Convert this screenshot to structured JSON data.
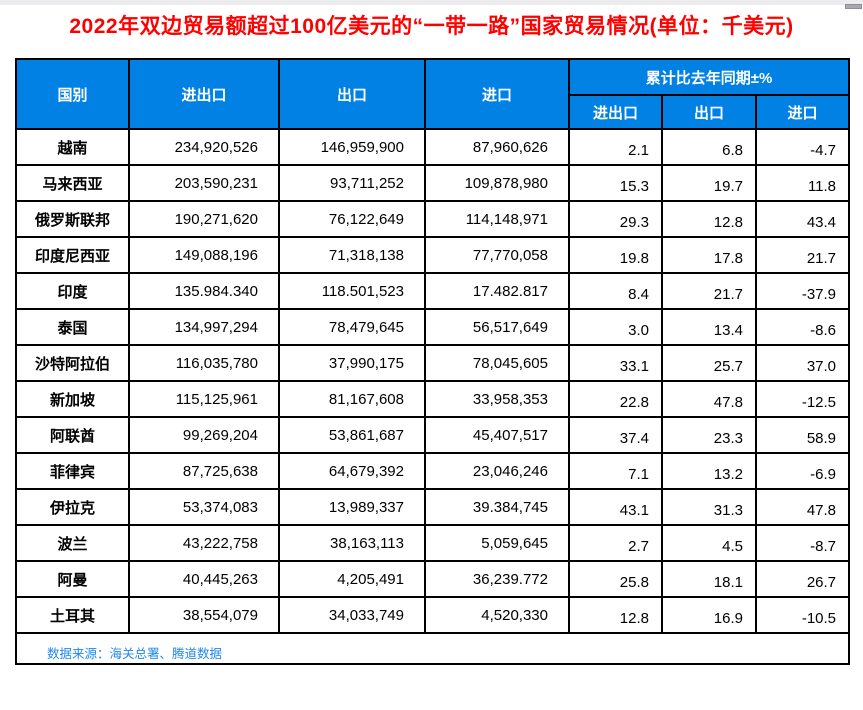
{
  "page": {
    "title": "2022年双边贸易额超过100亿美元的“一带一路”国家贸易情况(单位：千美元)",
    "source_note": "数据来源：海关总署、腾道数据"
  },
  "colors": {
    "title_red": "#FF0000",
    "header_bg": "#0081E3",
    "header_text": "#FFFFFF",
    "source_blue": "#1E87F0",
    "border": "#000000",
    "chrome_strip": "#ECECEE",
    "scrollbar": "#A9A9AF"
  },
  "table_header": {
    "country": "国别",
    "total": "进出口",
    "export": "出口",
    "import": "进口",
    "yoy_group": "累计比去年同期±%",
    "yoy_total": "进出口",
    "yoy_export": "出口",
    "yoy_import": "进口"
  },
  "chart_data": {
    "type": "table",
    "title": "2022年双边贸易额超过100亿美元的“一带一路”国家贸易情况(单位：千美元)",
    "column_groups": [
      "",
      "累计比去年同期±%"
    ],
    "columns": [
      "国别",
      "进出口",
      "出口",
      "进口",
      "进出口",
      "出口",
      "进口"
    ],
    "units": "千美元",
    "rows": [
      [
        "越南",
        "234,920,526",
        "146,959,900",
        "87,960,626",
        "2.1",
        "6.8",
        "-4.7"
      ],
      [
        "马来西亚",
        "203,590,231",
        "93,711,252",
        "109,878,980",
        "15.3",
        "19.7",
        "11.8"
      ],
      [
        "俄罗斯联邦",
        "190,271,620",
        "76,122,649",
        "114,148,971",
        "29.3",
        "12.8",
        "43.4"
      ],
      [
        "印度尼西亚",
        "149,088,196",
        "71,318,138",
        "77,770,058",
        "19.8",
        "17.8",
        "21.7"
      ],
      [
        "印度",
        "135.984.340",
        "118.501,523",
        "17.482.817",
        "8.4",
        "21.7",
        "-37.9"
      ],
      [
        "泰国",
        "134,997,294",
        "78,479,645",
        "56,517,649",
        "3.0",
        "13.4",
        "-8.6"
      ],
      [
        "沙特阿拉伯",
        "116,035,780",
        "37,990,175",
        "78,045,605",
        "33.1",
        "25.7",
        "37.0"
      ],
      [
        "新加坡",
        "115,125,961",
        "81,167,608",
        "33,958,353",
        "22.8",
        "47.8",
        "-12.5"
      ],
      [
        "阿联酋",
        "99,269,204",
        "53,861,687",
        "45,407,517",
        "37.4",
        "23.3",
        "58.9"
      ],
      [
        "菲律宾",
        "87,725,638",
        "64,679,392",
        "23,046,246",
        "7.1",
        "13.2",
        "-6.9"
      ],
      [
        "伊拉克",
        "53,374,083",
        "13,989,337",
        "39.384,745",
        "43.1",
        "31.3",
        "47.8"
      ],
      [
        "波兰",
        "43,222,758",
        "38,163,113",
        "5,059,645",
        "2.7",
        "4.5",
        "-8.7"
      ],
      [
        "阿曼",
        "40,445,263",
        "4,205,491",
        "36,239.772",
        "25.8",
        "18.1",
        "26.7"
      ],
      [
        "土耳其",
        "38,554,079",
        "34,033,749",
        "4,520,330",
        "12.8",
        "16.9",
        "-10.5"
      ]
    ]
  }
}
